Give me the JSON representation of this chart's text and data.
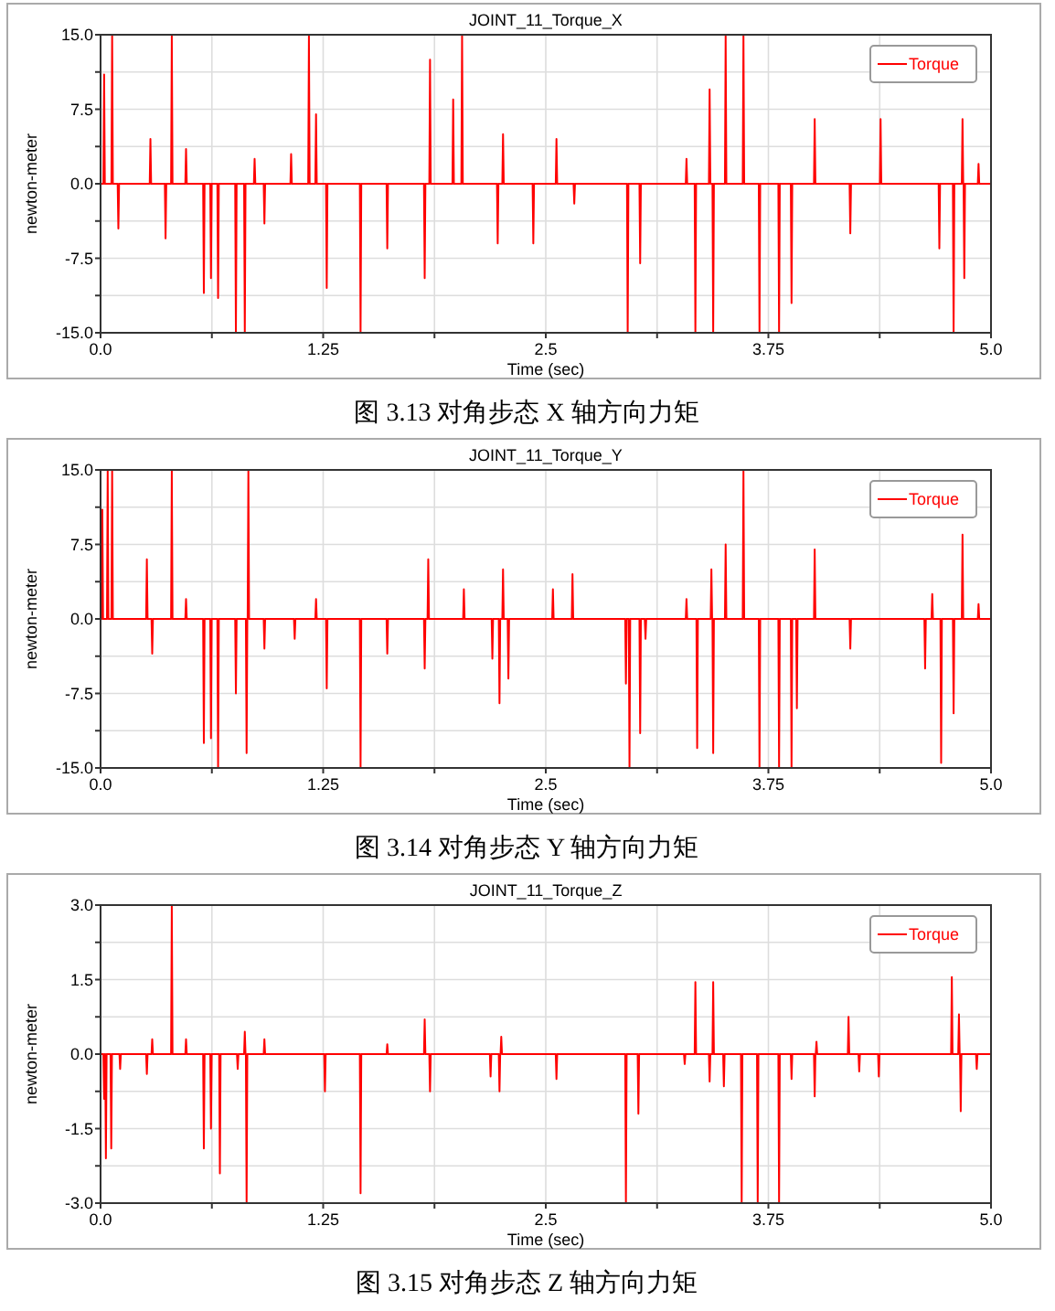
{
  "chart_data": [
    {
      "type": "line",
      "title": "JOINT_11_Torque_X",
      "xlabel": "Time (sec)",
      "ylabel": "newton-meter",
      "annotations": [
        "图 3.13  对角步态 X 轴方向力矩"
      ],
      "grid": true,
      "legend": "top right",
      "line_style": "solid",
      "xlim": [
        0,
        5
      ],
      "ylim": [
        -15,
        15
      ],
      "xticks": [
        {
          "value": 0,
          "label": "0.0"
        },
        {
          "value": 0.625,
          "label": null
        },
        1.25,
        {
          "value": 1.875,
          "label": null
        },
        2.5,
        {
          "value": 3.125,
          "label": null
        },
        3.75,
        {
          "value": 4.375,
          "label": null
        },
        {
          "value": 5,
          "label": "5.0"
        }
      ],
      "yticks": [
        {
          "value": -15,
          "label": "-15.0"
        },
        {
          "value": -11.25,
          "label": null
        },
        -7.5,
        {
          "value": -3.75,
          "label": null
        },
        {
          "value": 0,
          "label": "0.0"
        },
        {
          "value": 3.75,
          "label": null
        },
        7.5,
        {
          "value": 11.25,
          "label": null
        },
        {
          "value": 15,
          "label": "15.0"
        }
      ],
      "x": [
        0,
        0.016,
        0.02,
        0.024,
        0.061,
        0.065,
        0.069,
        0.096,
        0.1,
        0.104,
        0.276,
        0.28,
        0.284,
        0.361,
        0.365,
        0.369,
        0.396,
        0.4,
        0.404,
        0.476,
        0.48,
        0.484,
        0.576,
        0.58,
        0.584,
        0.616,
        0.62,
        0.624,
        0.656,
        0.66,
        0.664,
        0.756,
        0.76,
        0.764,
        0.806,
        0.81,
        0.814,
        0.861,
        0.865,
        0.869,
        0.916,
        0.92,
        0.924,
        1.066,
        1.07,
        1.074,
        1.166,
        1.17,
        1.174,
        1.206,
        1.21,
        1.214,
        1.266,
        1.27,
        1.274,
        1.456,
        1.46,
        1.464,
        1.606,
        1.61,
        1.614,
        1.816,
        1.82,
        1.824,
        1.846,
        1.85,
        1.854,
        1.976,
        1.98,
        1.984,
        2.026,
        2.03,
        2.034,
        2.226,
        2.23,
        2.234,
        2.256,
        2.26,
        2.264,
        2.426,
        2.43,
        2.434,
        2.556,
        2.56,
        2.564,
        2.656,
        2.66,
        2.664,
        2.956,
        2.96,
        2.964,
        3.026,
        3.03,
        3.034,
        3.286,
        3.29,
        3.294,
        3.336,
        3.34,
        3.344,
        3.416,
        3.42,
        3.424,
        3.436,
        3.44,
        3.444,
        3.506,
        3.51,
        3.514,
        3.606,
        3.61,
        3.614,
        3.696,
        3.7,
        3.704,
        3.806,
        3.81,
        3.814,
        3.876,
        3.88,
        3.884,
        4.006,
        4.01,
        4.014,
        4.206,
        4.21,
        4.214,
        4.376,
        4.38,
        4.384,
        4.706,
        4.71,
        4.714,
        4.786,
        4.79,
        4.794,
        4.836,
        4.84,
        4.844,
        4.846,
        4.85,
        4.854,
        4.926,
        4.93,
        4.934,
        5
      ],
      "series": [
        {
          "name": "Torque",
          "color": "#ff0000",
          "values": [
            0,
            0,
            11,
            0,
            0,
            15,
            0,
            0,
            -4.5,
            0,
            0,
            4.5,
            0,
            0,
            -5.5,
            0,
            0,
            15,
            0,
            0,
            3.5,
            0,
            0,
            -11,
            0,
            0,
            -9.5,
            0,
            0,
            -11.5,
            0,
            0,
            -15,
            0,
            0,
            -15,
            0,
            0,
            2.5,
            0,
            0,
            -4,
            0,
            0,
            3,
            0,
            0,
            15,
            0,
            0,
            7,
            0,
            0,
            -10.5,
            0,
            0,
            -15,
            0,
            0,
            -6.5,
            0,
            0,
            -9.5,
            0,
            0,
            12.5,
            0,
            0,
            8.5,
            0,
            0,
            15,
            0,
            0,
            -6,
            0,
            0,
            5,
            0,
            0,
            -6,
            0,
            0,
            4.5,
            0,
            0,
            -2,
            0,
            0,
            -15,
            0,
            0,
            -8,
            0,
            0,
            2.5,
            0,
            0,
            -15,
            0,
            0,
            9.5,
            0,
            0,
            -15,
            0,
            0,
            15,
            0,
            0,
            15,
            0,
            0,
            -15,
            0,
            0,
            -15,
            0,
            0,
            -12,
            0,
            0,
            6.5,
            0,
            0,
            -5,
            0,
            0,
            6.5,
            0,
            0,
            -6.5,
            0,
            0,
            -15,
            0,
            0,
            6.5,
            0,
            0,
            -9.5,
            0,
            0,
            2,
            0,
            0
          ]
        }
      ]
    },
    {
      "type": "line",
      "title": "JOINT_11_Torque_Y",
      "xlabel": "Time (sec)",
      "ylabel": "newton-meter",
      "annotations": [
        "图 3.14  对角步态 Y 轴方向力矩"
      ],
      "grid": true,
      "legend": "top right",
      "line_style": "solid",
      "xlim": [
        0,
        5
      ],
      "ylim": [
        -15,
        15
      ],
      "xticks": [
        {
          "value": 0,
          "label": "0.0"
        },
        {
          "value": 0.625,
          "label": null
        },
        1.25,
        {
          "value": 1.875,
          "label": null
        },
        2.5,
        {
          "value": 3.125,
          "label": null
        },
        3.75,
        {
          "value": 4.375,
          "label": null
        },
        {
          "value": 5,
          "label": "5.0"
        }
      ],
      "yticks": [
        {
          "value": -15,
          "label": "-15.0"
        },
        {
          "value": -11.25,
          "label": null
        },
        -7.5,
        {
          "value": -3.75,
          "label": null
        },
        {
          "value": 0,
          "label": "0.0"
        },
        {
          "value": 3.75,
          "label": null
        },
        7.5,
        {
          "value": 11.25,
          "label": null
        },
        {
          "value": 15,
          "label": "15.0"
        }
      ],
      "x": [
        0,
        0.006,
        0.01,
        0.014,
        0.036,
        0.04,
        0.044,
        0.061,
        0.065,
        0.069,
        0.256,
        0.26,
        0.264,
        0.286,
        0.29,
        0.294,
        0.396,
        0.4,
        0.404,
        0.476,
        0.48,
        0.484,
        0.576,
        0.58,
        0.584,
        0.616,
        0.62,
        0.624,
        0.656,
        0.66,
        0.664,
        0.756,
        0.76,
        0.764,
        0.816,
        0.82,
        0.824,
        0.826,
        0.83,
        0.834,
        0.916,
        0.92,
        0.924,
        1.086,
        1.09,
        1.094,
        1.206,
        1.21,
        1.214,
        1.266,
        1.27,
        1.274,
        1.456,
        1.46,
        1.464,
        1.606,
        1.61,
        1.614,
        1.816,
        1.82,
        1.824,
        1.836,
        1.84,
        1.844,
        2.036,
        2.04,
        2.044,
        2.196,
        2.2,
        2.204,
        2.236,
        2.24,
        2.244,
        2.256,
        2.26,
        2.264,
        2.286,
        2.29,
        2.294,
        2.536,
        2.54,
        2.544,
        2.646,
        2.65,
        2.654,
        2.946,
        2.95,
        2.954,
        2.966,
        2.97,
        2.974,
        3.026,
        3.03,
        3.034,
        3.056,
        3.06,
        3.064,
        3.286,
        3.29,
        3.294,
        3.346,
        3.35,
        3.354,
        3.426,
        3.43,
        3.434,
        3.436,
        3.44,
        3.444,
        3.506,
        3.51,
        3.514,
        3.606,
        3.61,
        3.614,
        3.696,
        3.7,
        3.704,
        3.806,
        3.81,
        3.814,
        3.876,
        3.88,
        3.884,
        3.906,
        3.91,
        3.914,
        4.006,
        4.01,
        4.014,
        4.206,
        4.21,
        4.214,
        4.626,
        4.63,
        4.634,
        4.666,
        4.67,
        4.674,
        4.716,
        4.72,
        4.724,
        4.786,
        4.79,
        4.794,
        4.836,
        4.84,
        4.844,
        4.926,
        4.93,
        4.934,
        5
      ],
      "series": [
        {
          "name": "Torque",
          "color": "#ff0000",
          "values": [
            0,
            0,
            11,
            0,
            0,
            15,
            0,
            0,
            15,
            0,
            0,
            6,
            0,
            0,
            -3.5,
            0,
            0,
            15,
            0,
            0,
            2,
            0,
            0,
            -12.5,
            0,
            0,
            -12,
            0,
            0,
            -15,
            0,
            0,
            -7.5,
            0,
            0,
            -13.5,
            0,
            0,
            15,
            0,
            0,
            -3,
            0,
            0,
            -2,
            0,
            0,
            2,
            0,
            0,
            -7,
            0,
            0,
            -15,
            0,
            0,
            -3.5,
            0,
            0,
            -5,
            0,
            0,
            6,
            0,
            0,
            3,
            0,
            0,
            -4,
            0,
            0,
            -8.5,
            0,
            0,
            5,
            0,
            0,
            -6,
            0,
            0,
            3,
            0,
            0,
            4.5,
            0,
            0,
            -6.5,
            0,
            0,
            -15,
            0,
            0,
            -11.5,
            0,
            0,
            -2,
            0,
            0,
            2,
            0,
            0,
            -13,
            0,
            0,
            5,
            0,
            0,
            -13.5,
            0,
            0,
            7.5,
            0,
            0,
            15,
            0,
            0,
            -15,
            0,
            0,
            -15,
            0,
            0,
            -15,
            0,
            0,
            -9,
            0,
            0,
            7,
            0,
            0,
            -3,
            0,
            0,
            -5,
            0,
            0,
            2.5,
            0,
            0,
            -14.5,
            0,
            0,
            -9.5,
            0,
            0,
            8.5,
            0,
            0,
            1.5,
            0,
            0
          ]
        }
      ]
    },
    {
      "type": "line",
      "title": "JOINT_11_Torque_Z",
      "xlabel": "Time (sec)",
      "ylabel": "newton-meter",
      "annotations": [
        "图 3.15  对角步态 Z 轴方向力矩"
      ],
      "grid": true,
      "legend": "top right",
      "line_style": "solid",
      "xlim": [
        0,
        5
      ],
      "ylim": [
        -3,
        3
      ],
      "xticks": [
        {
          "value": 0,
          "label": "0.0"
        },
        {
          "value": 0.625,
          "label": null
        },
        1.25,
        {
          "value": 1.875,
          "label": null
        },
        2.5,
        {
          "value": 3.125,
          "label": null
        },
        3.75,
        {
          "value": 4.375,
          "label": null
        },
        {
          "value": 5,
          "label": "5.0"
        }
      ],
      "yticks": [
        {
          "value": -3,
          "label": "-3.0"
        },
        {
          "value": -2.25,
          "label": null
        },
        -1.5,
        {
          "value": -0.75,
          "label": null
        },
        {
          "value": 0,
          "label": "0.0"
        },
        {
          "value": 0.75,
          "label": null
        },
        1.5,
        {
          "value": 2.25,
          "label": null
        },
        {
          "value": 3,
          "label": "3.0"
        }
      ],
      "x": [
        0,
        0.016,
        0.02,
        0.024,
        0.026,
        0.03,
        0.034,
        0.056,
        0.06,
        0.064,
        0.106,
        0.11,
        0.114,
        0.256,
        0.26,
        0.264,
        0.286,
        0.29,
        0.294,
        0.396,
        0.4,
        0.404,
        0.476,
        0.48,
        0.484,
        0.576,
        0.58,
        0.584,
        0.616,
        0.62,
        0.624,
        0.666,
        0.67,
        0.674,
        0.766,
        0.77,
        0.774,
        0.806,
        0.81,
        0.814,
        0.816,
        0.82,
        0.824,
        0.916,
        0.92,
        0.924,
        1.256,
        1.26,
        1.264,
        1.456,
        1.46,
        1.464,
        1.606,
        1.61,
        1.614,
        1.816,
        1.82,
        1.824,
        1.846,
        1.85,
        1.854,
        2.186,
        2.19,
        2.194,
        2.236,
        2.24,
        2.244,
        2.246,
        2.25,
        2.254,
        2.556,
        2.56,
        2.564,
        2.946,
        2.95,
        2.954,
        3.016,
        3.02,
        3.024,
        3.276,
        3.28,
        3.284,
        3.336,
        3.34,
        3.344,
        3.416,
        3.42,
        3.424,
        3.436,
        3.44,
        3.444,
        3.496,
        3.5,
        3.504,
        3.596,
        3.6,
        3.604,
        3.686,
        3.69,
        3.694,
        3.806,
        3.81,
        3.814,
        3.876,
        3.88,
        3.884,
        4.006,
        4.01,
        4.014,
        4.016,
        4.02,
        4.024,
        4.196,
        4.2,
        4.204,
        4.256,
        4.26,
        4.264,
        4.366,
        4.37,
        4.374,
        4.776,
        4.78,
        4.784,
        4.816,
        4.82,
        4.824,
        4.826,
        4.83,
        4.834,
        4.916,
        4.92,
        4.924,
        5
      ],
      "series": [
        {
          "name": "Torque",
          "color": "#ff0000",
          "values": [
            0,
            0,
            -0.9,
            0,
            0,
            -2.1,
            0,
            0,
            -1.9,
            0,
            0,
            -0.3,
            0,
            0,
            -0.4,
            0,
            0,
            0.3,
            0,
            0,
            3,
            0,
            0,
            0.3,
            0,
            0,
            -1.9,
            0,
            0,
            -1.5,
            0,
            0,
            -2.4,
            0,
            0,
            -0.3,
            0,
            0,
            0.45,
            0,
            0,
            -3,
            0,
            0,
            0.3,
            0,
            0,
            -0.75,
            0,
            0,
            -2.8,
            0,
            0,
            0.2,
            0,
            0,
            0.7,
            0,
            0,
            -0.75,
            0,
            0,
            -0.45,
            0,
            0,
            -0.75,
            0,
            0,
            0.35,
            0,
            0,
            -0.5,
            0,
            0,
            -3,
            0,
            0,
            -1.2,
            0,
            0,
            -0.2,
            0,
            0,
            1.45,
            0,
            0,
            -0.55,
            0,
            0,
            1.45,
            0,
            0,
            -0.65,
            0,
            0,
            -3,
            0,
            0,
            -3,
            0,
            0,
            -3,
            0,
            0,
            -0.5,
            0,
            0,
            -0.85,
            0,
            0,
            0.25,
            0,
            0,
            0.75,
            0,
            0,
            -0.35,
            0,
            0,
            -0.45,
            0,
            0,
            1.55,
            0,
            0,
            0.8,
            0,
            0,
            -1.15,
            0,
            0,
            -0.3,
            0,
            0
          ]
        }
      ]
    }
  ]
}
